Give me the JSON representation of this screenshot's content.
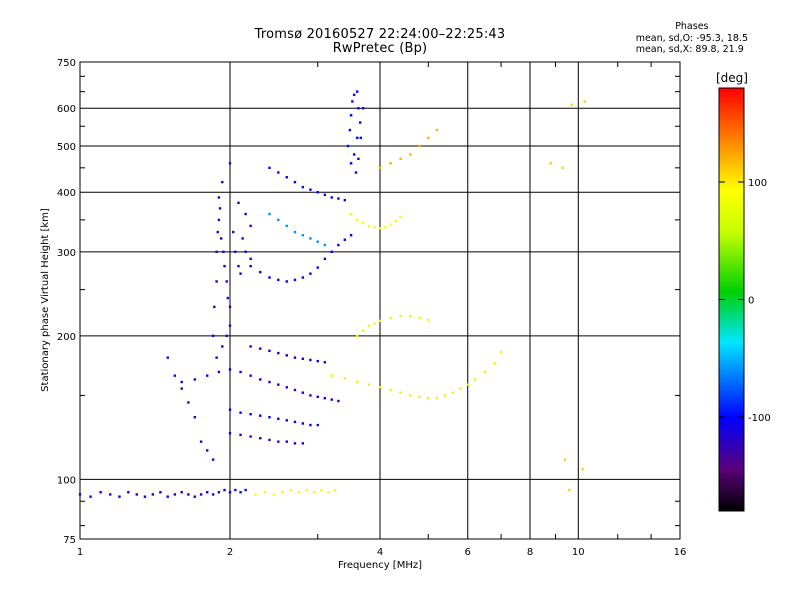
{
  "header": {
    "title": "Tromsø 20160527 22:24:00–22:25:43",
    "subtitle": "RwPretec (Bp)"
  },
  "phases": {
    "title": "Phases",
    "line_o": "mean, sd,O: -95.3, 18.5",
    "line_x": "mean, sd,X:  89.8, 21.9"
  },
  "chart_data": {
    "type": "scatter",
    "xlabel": "Frequency [MHz]",
    "ylabel": "Stationary phase Virtual Height [km]",
    "xscale": "log",
    "yscale": "log",
    "xlim": [
      1,
      16
    ],
    "ylim": [
      75,
      750
    ],
    "x_ticks": [
      1,
      2,
      4,
      6,
      8,
      10,
      16
    ],
    "x_tick_labels": [
      "1",
      "2",
      "4",
      "6",
      "8",
      "10",
      "16"
    ],
    "x_minor_ticks": [
      3,
      5,
      7,
      9,
      12,
      14
    ],
    "y_ticks": [
      75,
      100,
      200,
      300,
      400,
      500,
      600,
      750
    ],
    "y_tick_labels": [
      "75",
      "100",
      "200",
      "300",
      "400",
      "500",
      "600",
      "750"
    ],
    "y_minor_ticks": [
      80,
      90,
      150,
      250,
      350,
      450,
      550,
      650,
      700
    ],
    "grid": true,
    "colorbar": {
      "label": "[deg]",
      "range": [
        -180,
        180
      ],
      "ticks": [
        100,
        0,
        -100
      ],
      "tick_labels": [
        "100",
        "0",
        "-100"
      ]
    },
    "traces": [
      {
        "name": "",
        "points": [
          [
            1.0,
            93
          ],
          [
            1.05,
            92
          ],
          [
            1.1,
            94
          ],
          [
            1.15,
            93
          ],
          [
            1.2,
            92
          ],
          [
            1.25,
            94
          ],
          [
            1.3,
            93
          ],
          [
            1.35,
            92
          ],
          [
            1.4,
            93
          ],
          [
            1.45,
            94
          ],
          [
            1.5,
            92
          ],
          [
            1.55,
            93
          ],
          [
            1.6,
            94
          ],
          [
            1.65,
            93
          ],
          [
            1.7,
            92
          ],
          [
            1.75,
            93
          ],
          [
            1.8,
            94
          ],
          [
            1.85,
            93
          ],
          [
            1.9,
            94
          ],
          [
            1.95,
            95
          ],
          [
            2.0,
            94
          ],
          [
            2.05,
            95
          ],
          [
            2.1,
            94
          ],
          [
            2.15,
            95
          ]
        ],
        "phase": -110
      },
      {
        "name": "",
        "points": [
          [
            2.25,
            93
          ],
          [
            2.35,
            94
          ],
          [
            2.45,
            93
          ],
          [
            2.55,
            94
          ],
          [
            2.65,
            95
          ],
          [
            2.75,
            94
          ],
          [
            2.85,
            95
          ],
          [
            2.95,
            94
          ],
          [
            3.05,
            95
          ],
          [
            3.15,
            94
          ],
          [
            3.25,
            95
          ]
        ],
        "phase": 85
      },
      {
        "name": "",
        "points": [
          [
            1.9,
            390
          ],
          [
            1.9,
            350
          ],
          [
            1.92,
            320
          ],
          [
            1.94,
            300
          ],
          [
            1.95,
            280
          ],
          [
            1.97,
            260
          ],
          [
            1.98,
            240
          ],
          [
            2.0,
            230
          ],
          [
            2.0,
            210
          ],
          [
            1.97,
            200
          ],
          [
            1.93,
            190
          ],
          [
            1.88,
            180
          ],
          [
            1.85,
            200
          ],
          [
            1.86,
            230
          ],
          [
            1.88,
            260
          ],
          [
            1.88,
            300
          ],
          [
            1.89,
            330
          ],
          [
            1.91,
            370
          ],
          [
            1.93,
            420
          ],
          [
            2.0,
            460
          ],
          [
            2.03,
            330
          ],
          [
            2.05,
            300
          ],
          [
            2.08,
            280
          ],
          [
            2.1,
            270
          ],
          [
            2.12,
            320
          ],
          [
            2.15,
            300
          ],
          [
            2.2,
            290
          ],
          [
            2.2,
            340
          ],
          [
            2.15,
            360
          ],
          [
            2.08,
            380
          ]
        ],
        "phase": -115
      },
      {
        "name": "",
        "points": [
          [
            2.2,
            280
          ],
          [
            2.3,
            272
          ],
          [
            2.4,
            265
          ],
          [
            2.5,
            262
          ],
          [
            2.6,
            260
          ],
          [
            2.7,
            262
          ],
          [
            2.8,
            265
          ],
          [
            2.9,
            270
          ],
          [
            3.0,
            278
          ],
          [
            3.1,
            290
          ],
          [
            3.2,
            300
          ],
          [
            3.3,
            310
          ],
          [
            3.4,
            318
          ],
          [
            3.5,
            325
          ]
        ],
        "phase": -105
      },
      {
        "name": "",
        "points": [
          [
            2.4,
            450
          ],
          [
            2.5,
            440
          ],
          [
            2.6,
            430
          ],
          [
            2.7,
            420
          ],
          [
            2.8,
            410
          ],
          [
            2.9,
            405
          ],
          [
            3.0,
            400
          ],
          [
            3.1,
            395
          ],
          [
            3.2,
            390
          ],
          [
            3.3,
            388
          ],
          [
            3.4,
            385
          ]
        ],
        "phase": -100
      },
      {
        "name": "",
        "points": [
          [
            2.4,
            360
          ],
          [
            2.5,
            350
          ],
          [
            2.6,
            340
          ],
          [
            2.7,
            330
          ],
          [
            2.8,
            325
          ],
          [
            2.9,
            320
          ],
          [
            3.0,
            315
          ],
          [
            3.1,
            310
          ]
        ],
        "phase": -60
      },
      {
        "name": "",
        "points": [
          [
            3.45,
            500
          ],
          [
            3.48,
            540
          ],
          [
            3.5,
            580
          ],
          [
            3.52,
            620
          ],
          [
            3.55,
            640
          ],
          [
            3.6,
            650
          ],
          [
            3.62,
            600
          ],
          [
            3.65,
            560
          ],
          [
            3.6,
            520
          ],
          [
            3.55,
            480
          ],
          [
            3.5,
            460
          ],
          [
            3.58,
            440
          ],
          [
            3.62,
            470
          ],
          [
            3.66,
            520
          ],
          [
            3.7,
            600
          ]
        ],
        "phase": -100
      },
      {
        "name": "",
        "points": [
          [
            1.6,
            160
          ],
          [
            1.7,
            162
          ],
          [
            1.8,
            165
          ],
          [
            1.9,
            168
          ],
          [
            2.0,
            170
          ],
          [
            2.1,
            168
          ],
          [
            2.2,
            165
          ],
          [
            2.3,
            162
          ],
          [
            2.4,
            160
          ],
          [
            2.5,
            158
          ],
          [
            2.6,
            156
          ],
          [
            2.7,
            154
          ],
          [
            2.8,
            152
          ],
          [
            2.9,
            150
          ],
          [
            3.0,
            149
          ],
          [
            3.1,
            148
          ],
          [
            3.2,
            147
          ],
          [
            3.3,
            146
          ]
        ],
        "phase": -115
      },
      {
        "name": "",
        "points": [
          [
            2.0,
            140
          ],
          [
            2.1,
            138
          ],
          [
            2.2,
            137
          ],
          [
            2.3,
            136
          ],
          [
            2.4,
            135
          ],
          [
            2.5,
            134
          ],
          [
            2.6,
            133
          ],
          [
            2.7,
            132
          ],
          [
            2.8,
            131
          ],
          [
            2.9,
            130
          ],
          [
            3.0,
            130
          ]
        ],
        "phase": -100
      },
      {
        "name": "",
        "points": [
          [
            2.2,
            190
          ],
          [
            2.3,
            188
          ],
          [
            2.4,
            186
          ],
          [
            2.5,
            184
          ],
          [
            2.6,
            182
          ],
          [
            2.7,
            180
          ],
          [
            2.8,
            179
          ],
          [
            2.9,
            178
          ],
          [
            3.0,
            177
          ],
          [
            3.1,
            176
          ]
        ],
        "phase": -110
      },
      {
        "name": "",
        "points": [
          [
            2.0,
            125
          ],
          [
            2.1,
            124
          ],
          [
            2.2,
            123
          ],
          [
            2.3,
            122
          ],
          [
            2.4,
            121
          ],
          [
            2.5,
            120
          ],
          [
            2.6,
            120
          ],
          [
            2.7,
            119
          ],
          [
            2.8,
            119
          ]
        ],
        "phase": -115
      },
      {
        "name": "",
        "points": [
          [
            3.2,
            165
          ],
          [
            3.4,
            163
          ],
          [
            3.6,
            160
          ],
          [
            3.8,
            158
          ],
          [
            4.0,
            156
          ],
          [
            4.2,
            154
          ],
          [
            4.4,
            152
          ],
          [
            4.6,
            150
          ],
          [
            4.8,
            149
          ],
          [
            5.0,
            148
          ],
          [
            5.2,
            148
          ],
          [
            5.4,
            150
          ],
          [
            5.6,
            152
          ],
          [
            5.8,
            155
          ],
          [
            6.0,
            158
          ],
          [
            6.2,
            162
          ],
          [
            6.5,
            168
          ],
          [
            6.8,
            175
          ],
          [
            7.0,
            185
          ]
        ],
        "phase": 70
      },
      {
        "name": "",
        "points": [
          [
            3.5,
            360
          ],
          [
            3.6,
            350
          ],
          [
            3.7,
            345
          ],
          [
            3.8,
            340
          ],
          [
            3.9,
            338
          ],
          [
            4.0,
            336
          ],
          [
            4.1,
            338
          ],
          [
            4.2,
            342
          ],
          [
            4.3,
            348
          ],
          [
            4.4,
            355
          ]
        ],
        "phase": 90
      },
      {
        "name": "",
        "points": [
          [
            3.6,
            200
          ],
          [
            3.7,
            205
          ],
          [
            3.8,
            210
          ],
          [
            3.9,
            212
          ],
          [
            4.0,
            215
          ],
          [
            4.2,
            218
          ],
          [
            4.4,
            220
          ],
          [
            4.6,
            220
          ],
          [
            4.8,
            218
          ],
          [
            5.0,
            216
          ]
        ],
        "phase": 75
      },
      {
        "name": "",
        "points": [
          [
            4.0,
            450
          ],
          [
            4.2,
            460
          ],
          [
            4.4,
            470
          ],
          [
            4.6,
            480
          ],
          [
            4.8,
            500
          ],
          [
            5.0,
            520
          ],
          [
            5.2,
            540
          ]
        ],
        "phase": 120
      },
      {
        "name": "",
        "points": [
          [
            8.8,
            460
          ],
          [
            9.3,
            450
          ],
          [
            9.7,
            610
          ],
          [
            10.3,
            620
          ],
          [
            9.4,
            110
          ],
          [
            10.2,
            105
          ],
          [
            9.6,
            95
          ]
        ],
        "phase": 110
      },
      {
        "name": "",
        "points": [
          [
            1.5,
            180
          ],
          [
            1.55,
            165
          ],
          [
            1.6,
            155
          ],
          [
            1.65,
            145
          ],
          [
            1.7,
            135
          ],
          [
            1.75,
            120
          ],
          [
            1.8,
            115
          ],
          [
            1.85,
            110
          ]
        ],
        "phase": -120
      }
    ]
  }
}
